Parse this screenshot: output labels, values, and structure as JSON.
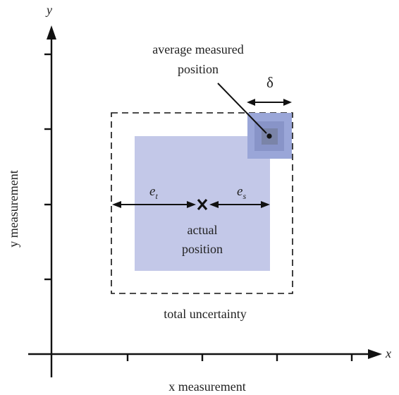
{
  "axes": {
    "x_symbol": "x",
    "y_symbol": "y",
    "x_label": "x measurement",
    "y_label": "y measurement"
  },
  "labels": {
    "average_measured_line1": "average measured",
    "average_measured_line2": "position",
    "delta": "δ",
    "e_t_base": "e",
    "e_t_sub": "t",
    "e_s_base": "e",
    "e_s_sub": "s",
    "actual_line1": "actual",
    "actual_line2": "position",
    "total_uncertainty": "total uncertainty"
  },
  "colors": {
    "axis": "#111111",
    "region_fill": "#c3c8e8",
    "measured_outer": "#9aa6d8",
    "measured_mid": "#8894c8",
    "measured_inner": "#7a84a8",
    "measured_core": "#6a7080",
    "dashed_box": "#111111"
  }
}
